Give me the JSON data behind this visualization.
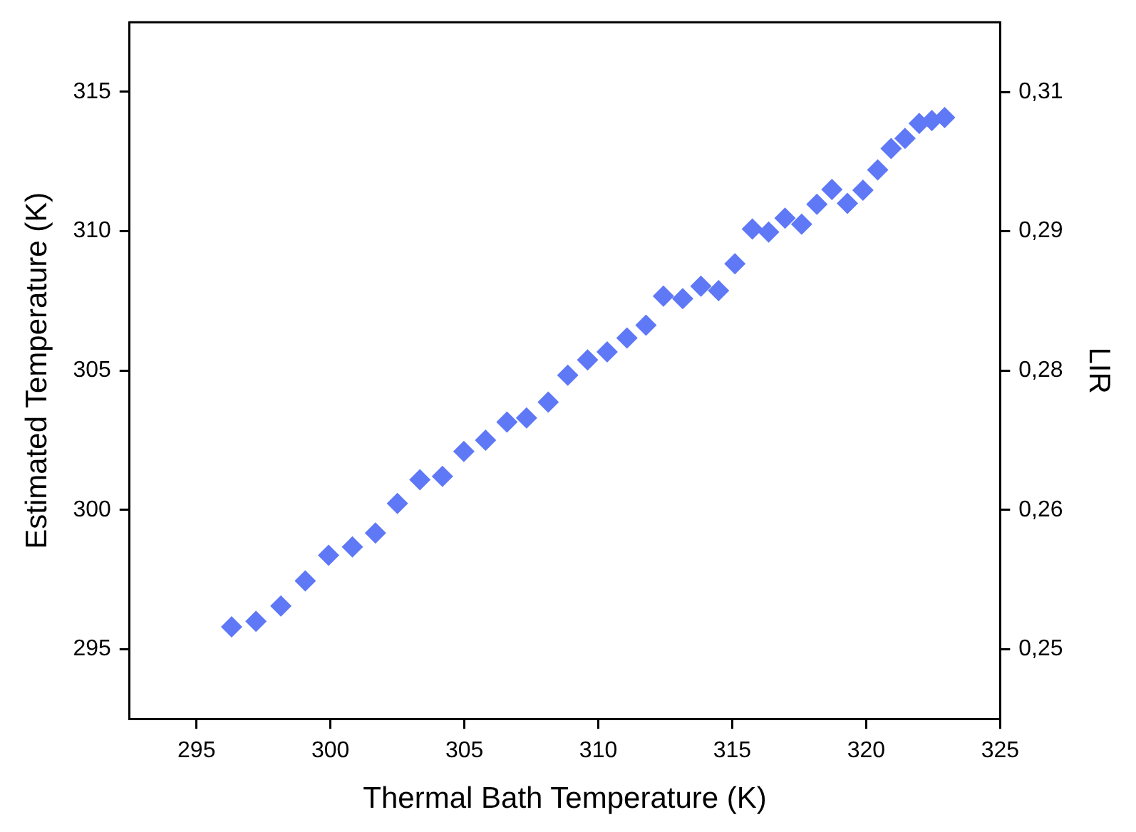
{
  "chart_data": {
    "type": "scatter",
    "xlabel": "Thermal Bath Temperature (K)",
    "ylabel": "Estimated Temperature (K)",
    "y2label": "LIR",
    "marker": "diamond",
    "xlim": [
      292.5,
      325
    ],
    "xticks": [
      295,
      300,
      305,
      310,
      315,
      320,
      325
    ],
    "ylim": [
      292.5,
      317.5
    ],
    "yticks": [
      295,
      300,
      305,
      310,
      315
    ],
    "y2lim": [
      0.2425,
      0.3175
    ],
    "y2ticks": [
      {
        "value": 0.25,
        "label": "0,25"
      },
      {
        "value": 0.265,
        "label": "0,26"
      },
      {
        "value": 0.28,
        "label": "0,28"
      },
      {
        "value": 0.295,
        "label": "0,29"
      },
      {
        "value": 0.31,
        "label": "0,31"
      }
    ],
    "series": [
      {
        "color": "#5f78f6",
        "x": [
          296.31,
          297.22,
          298.15,
          299.06,
          299.93,
          300.82,
          301.68,
          302.5,
          303.34,
          304.18,
          304.98,
          305.79,
          306.59,
          307.32,
          308.13,
          308.86,
          309.6,
          310.33,
          311.07,
          311.78,
          312.43,
          313.15,
          313.83,
          314.49,
          315.1,
          315.75,
          316.36,
          316.97,
          317.59,
          318.16,
          318.72,
          319.3,
          319.88,
          320.43,
          320.93,
          321.45,
          321.98,
          322.45,
          322.93
        ],
        "values": [
          295.8,
          296.0,
          296.55,
          297.45,
          298.37,
          298.67,
          299.17,
          300.23,
          301.08,
          301.2,
          302.1,
          302.5,
          303.15,
          303.3,
          303.87,
          304.83,
          305.38,
          305.67,
          306.17,
          306.63,
          307.67,
          307.58,
          308.03,
          307.87,
          308.83,
          310.08,
          309.97,
          310.47,
          310.25,
          310.97,
          311.5,
          311.0,
          311.47,
          312.2,
          312.97,
          313.33,
          313.87,
          313.97,
          314.08
        ]
      }
    ]
  }
}
